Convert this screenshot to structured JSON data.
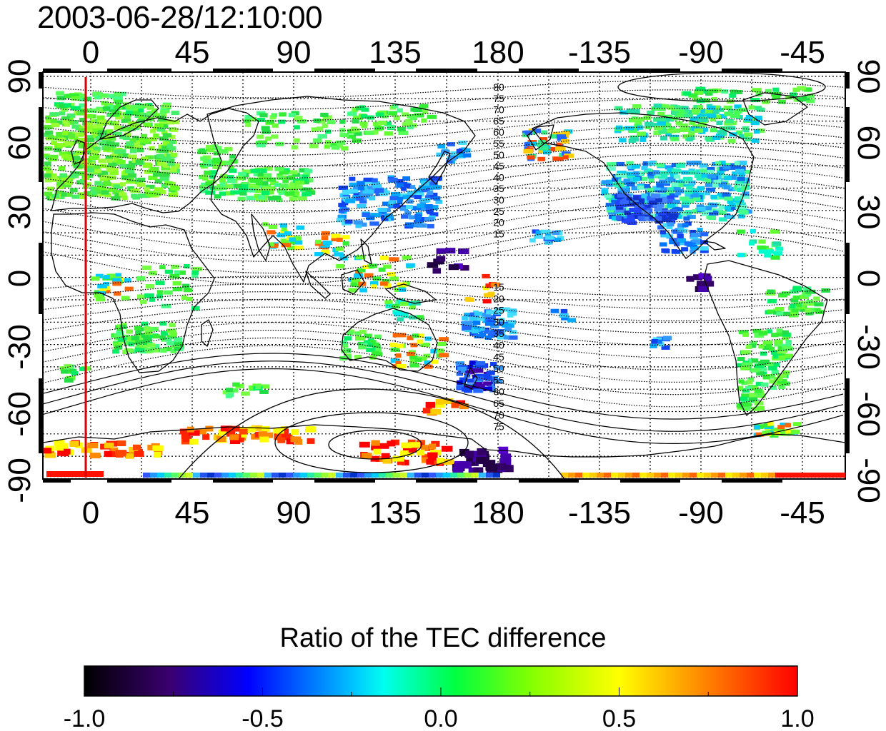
{
  "title": {
    "timestamp": "2003-06-28/12:10:00"
  },
  "map": {
    "longitude_ticks_top": [
      "0",
      "45",
      "90",
      "135",
      "180",
      "-135",
      "-90",
      "-45"
    ],
    "longitude_ticks_bottom": [
      "0",
      "45",
      "90",
      "135",
      "180",
      "-135",
      "-90",
      "-45"
    ],
    "latitude_ticks_left": [
      "90",
      "60",
      "30",
      "0",
      "-30",
      "-60",
      "-90"
    ],
    "latitude_ticks_right": [
      "90",
      "60",
      "30",
      "0",
      "-30",
      "-60",
      "-90"
    ],
    "contour_labels_north": [
      "80",
      "75",
      "70",
      "65",
      "60",
      "55",
      "50",
      "45",
      "40",
      "35",
      "30",
      "25",
      "20",
      "15"
    ],
    "contour_labels_south": [
      "15",
      "20",
      "25",
      "30",
      "35",
      "40",
      "45",
      "50",
      "55",
      "60",
      "65",
      "70",
      "75"
    ],
    "marker_line_color": "#dd0000",
    "coastline_color": "#000000",
    "grid_style": "dotted"
  },
  "colorbar": {
    "title": "Ratio of the TEC difference",
    "tick_labels": [
      "-1.0",
      "-0.5",
      "0.0",
      "0.5",
      "1.0"
    ],
    "range": [
      -1.0,
      1.0
    ],
    "colors": [
      "#000000",
      "#4b0082",
      "#0000ff",
      "#00ffff",
      "#00ff00",
      "#ffff00",
      "#ff0000"
    ]
  }
}
